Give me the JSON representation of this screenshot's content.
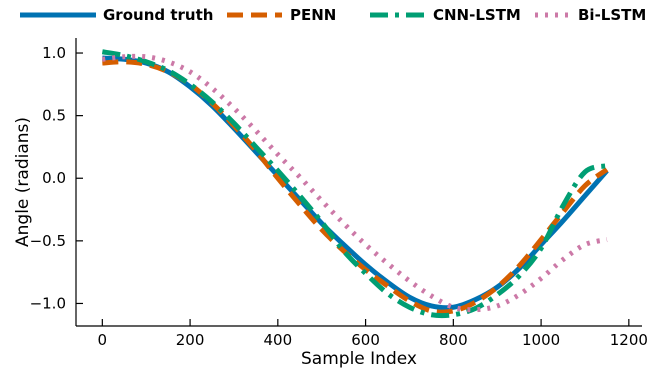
{
  "chart_data": {
    "type": "line",
    "title": "",
    "xlabel": "Sample Index",
    "ylabel": "Angle (radians)",
    "xlim": [
      -60,
      1230
    ],
    "ylim": [
      -1.18,
      1.12
    ],
    "xticks": [
      0,
      200,
      400,
      600,
      800,
      1000,
      1200
    ],
    "yticks": [
      -1.0,
      -0.5,
      0.0,
      0.5,
      1.0
    ],
    "xtick_labels": [
      "0",
      "200",
      "400",
      "600",
      "800",
      "1000",
      "1200"
    ],
    "ytick_labels": [
      "−1.0",
      "−0.5",
      "0.0",
      "0.5",
      "1.0"
    ],
    "legend_position": "top",
    "grid": false,
    "x": [
      0,
      50,
      100,
      150,
      200,
      250,
      300,
      350,
      400,
      450,
      500,
      550,
      600,
      650,
      700,
      750,
      800,
      850,
      900,
      950,
      1000,
      1050,
      1100,
      1150
    ],
    "series": [
      {
        "name": "Ground truth",
        "color": "#0072B2",
        "style": "solid",
        "values": [
          0.96,
          0.95,
          0.92,
          0.85,
          0.73,
          0.58,
          0.4,
          0.21,
          0.02,
          -0.17,
          -0.36,
          -0.53,
          -0.69,
          -0.83,
          -0.95,
          -1.02,
          -1.03,
          -0.97,
          -0.87,
          -0.72,
          -0.53,
          -0.34,
          -0.14,
          0.06
        ]
      },
      {
        "name": "PENN",
        "color": "#D55E00",
        "style": "dashed",
        "values": [
          0.92,
          0.93,
          0.91,
          0.85,
          0.75,
          0.6,
          0.42,
          0.22,
          0.0,
          -0.21,
          -0.41,
          -0.58,
          -0.73,
          -0.86,
          -0.98,
          -1.06,
          -1.06,
          -0.99,
          -0.87,
          -0.7,
          -0.49,
          -0.27,
          -0.06,
          0.07
        ]
      },
      {
        "name": "CNN-LSTM",
        "color": "#009E73",
        "style": "dashdot",
        "values": [
          1.01,
          0.98,
          0.93,
          0.86,
          0.75,
          0.61,
          0.44,
          0.25,
          0.06,
          -0.14,
          -0.35,
          -0.58,
          -0.76,
          -0.92,
          -1.03,
          -1.09,
          -1.09,
          -1.04,
          -0.93,
          -0.78,
          -0.56,
          -0.22,
          0.05,
          0.1
        ]
      },
      {
        "name": "Bi-LSTM",
        "color": "#CC79A7",
        "style": "dotted",
        "values": [
          0.95,
          0.97,
          0.97,
          0.93,
          0.85,
          0.72,
          0.56,
          0.38,
          0.19,
          0.01,
          -0.18,
          -0.36,
          -0.53,
          -0.68,
          -0.82,
          -0.94,
          -1.03,
          -1.05,
          -1.02,
          -0.93,
          -0.8,
          -0.65,
          -0.53,
          -0.49
        ]
      }
    ]
  }
}
